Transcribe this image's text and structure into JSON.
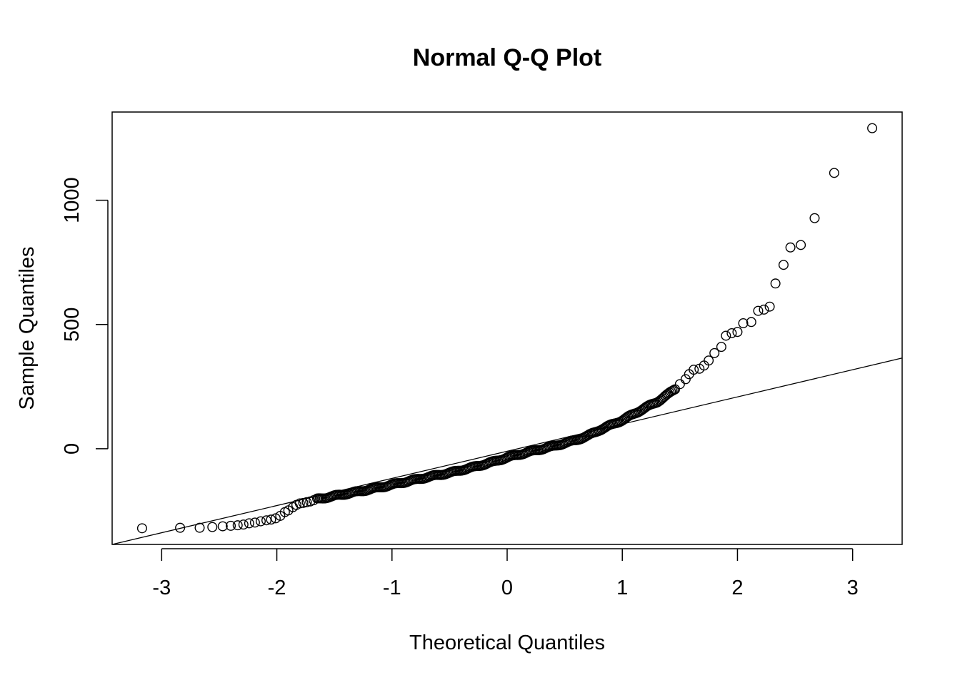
{
  "chart_data": {
    "type": "scatter",
    "title": "Normal Q-Q Plot",
    "xlabel": "Theoretical Quantiles",
    "ylabel": "Sample Quantiles",
    "xlim": [
      -3.43,
      3.43
    ],
    "ylim": [
      -385,
      1355
    ],
    "x_ticks": [
      -3,
      -2,
      -1,
      0,
      1,
      2,
      3
    ],
    "x_tick_labels": [
      "-3",
      "-2",
      "-1",
      "0",
      "1",
      "2",
      "3"
    ],
    "y_ticks": [
      0,
      500,
      1000
    ],
    "y_tick_labels": [
      "0",
      "500",
      "1000"
    ],
    "reference_line": {
      "x": [
        -3.43,
        3.43
      ],
      "y": [
        -385,
        365
      ]
    },
    "upper_tail": [
      {
        "x": 1.5,
        "y": 260
      },
      {
        "x": 1.55,
        "y": 280
      },
      {
        "x": 1.58,
        "y": 300
      },
      {
        "x": 1.62,
        "y": 318
      },
      {
        "x": 1.67,
        "y": 322
      },
      {
        "x": 1.71,
        "y": 335
      },
      {
        "x": 1.75,
        "y": 355
      },
      {
        "x": 1.8,
        "y": 385
      },
      {
        "x": 1.86,
        "y": 410
      },
      {
        "x": 1.9,
        "y": 455
      },
      {
        "x": 1.95,
        "y": 465
      },
      {
        "x": 2.0,
        "y": 470
      },
      {
        "x": 2.05,
        "y": 505
      },
      {
        "x": 2.12,
        "y": 510
      },
      {
        "x": 2.18,
        "y": 555
      },
      {
        "x": 2.23,
        "y": 560
      },
      {
        "x": 2.28,
        "y": 572
      },
      {
        "x": 2.33,
        "y": 665
      },
      {
        "x": 2.4,
        "y": 740
      },
      {
        "x": 2.46,
        "y": 810
      },
      {
        "x": 2.55,
        "y": 820
      },
      {
        "x": 2.67,
        "y": 928
      },
      {
        "x": 2.84,
        "y": 1110
      },
      {
        "x": 3.17,
        "y": 1290
      }
    ],
    "lower_tail": [
      {
        "x": -3.17,
        "y": -320
      },
      {
        "x": -2.84,
        "y": -318
      },
      {
        "x": -2.67,
        "y": -318
      },
      {
        "x": -2.56,
        "y": -315
      },
      {
        "x": -2.47,
        "y": -312
      },
      {
        "x": -2.4,
        "y": -310
      },
      {
        "x": -2.34,
        "y": -308
      },
      {
        "x": -2.29,
        "y": -305
      },
      {
        "x": -2.24,
        "y": -300
      },
      {
        "x": -2.19,
        "y": -297
      },
      {
        "x": -2.14,
        "y": -292
      },
      {
        "x": -2.09,
        "y": -288
      },
      {
        "x": -2.05,
        "y": -285
      },
      {
        "x": -2.01,
        "y": -280
      },
      {
        "x": -1.97,
        "y": -270
      },
      {
        "x": -1.93,
        "y": -255
      },
      {
        "x": -1.9,
        "y": -248
      },
      {
        "x": -1.86,
        "y": -235
      },
      {
        "x": -1.83,
        "y": -226
      },
      {
        "x": -1.8,
        "y": -220
      },
      {
        "x": -1.77,
        "y": -218
      },
      {
        "x": -1.74,
        "y": -215
      },
      {
        "x": -1.71,
        "y": -212
      },
      {
        "x": -1.68,
        "y": -207
      }
    ],
    "body_curve": [
      [
        -1.65,
        -203
      ],
      [
        -1.5,
        -190
      ],
      [
        -1.3,
        -173
      ],
      [
        -1.1,
        -155
      ],
      [
        -0.9,
        -135
      ],
      [
        -0.7,
        -115
      ],
      [
        -0.5,
        -97
      ],
      [
        -0.3,
        -75
      ],
      [
        -0.1,
        -50
      ],
      [
        0.0,
        -35
      ],
      [
        0.2,
        -12
      ],
      [
        0.4,
        10
      ],
      [
        0.6,
        35
      ],
      [
        0.7,
        52
      ],
      [
        0.8,
        75
      ],
      [
        0.9,
        95
      ],
      [
        1.0,
        115
      ],
      [
        1.1,
        140
      ],
      [
        1.2,
        165
      ],
      [
        1.3,
        188
      ],
      [
        1.4,
        220
      ],
      [
        1.47,
        245
      ]
    ],
    "n_points": 1000
  }
}
